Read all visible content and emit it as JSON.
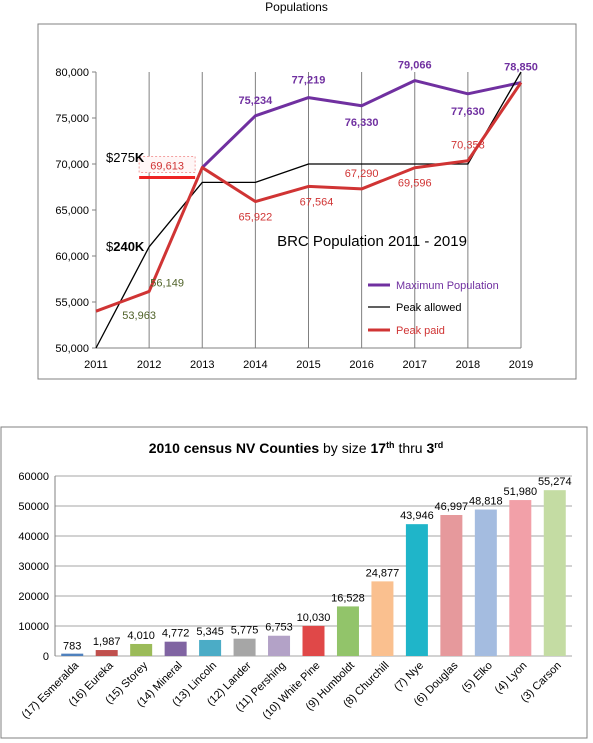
{
  "page_title": "Populations",
  "colors": {
    "max": "#7030a0",
    "peak_allowed": "#000000",
    "peak_paid": "#d03434",
    "green_label": "#4f6228"
  },
  "chart_data": [
    {
      "type": "line",
      "x": [
        "2011",
        "2012",
        "2013",
        "2014",
        "2015",
        "2016",
        "2017",
        "2018",
        "2019"
      ],
      "ylim": [
        50000,
        80000
      ],
      "yticks": [
        "50,000",
        "55,000",
        "60,000",
        "65,000",
        "70,000",
        "75,000",
        "80,000"
      ],
      "ytick_values": [
        50000,
        55000,
        60000,
        65000,
        70000,
        75000,
        80000
      ],
      "inner_title": "BRC Population 2011 - 2019",
      "series": [
        {
          "name": "Maximum Population",
          "color": "#7030a0",
          "x": [
            "2013",
            "2014",
            "2015",
            "2016",
            "2017",
            "2018",
            "2019"
          ],
          "values": [
            69613,
            75234,
            77219,
            76330,
            79066,
            77630,
            78850
          ],
          "labels": [
            "",
            "75,234",
            "77,219",
            "76,330",
            "79,066",
            "77,630",
            "78,850"
          ]
        },
        {
          "name": "Peak allowed",
          "color": "#000000",
          "x": [
            "2011",
            "2012",
            "2013",
            "2014",
            "2015",
            "2016",
            "2017",
            "2018",
            "2019"
          ],
          "values": [
            50000,
            61000,
            68000,
            68000,
            70000,
            70000,
            70000,
            70000,
            80000
          ]
        },
        {
          "name": "Peak paid",
          "color": "#d03434",
          "x": [
            "2011",
            "2012",
            "2013",
            "2014",
            "2015",
            "2016",
            "2017",
            "2018",
            "2019"
          ],
          "values": [
            54000,
            56149,
            69613,
            65922,
            67564,
            67290,
            69596,
            70358,
            78850
          ],
          "labels": [
            "",
            "56,149",
            "69,613",
            "65,922",
            "67,564",
            "67,290",
            "69,596",
            "70,358",
            ""
          ]
        }
      ],
      "annotations": {
        "label_275_prefix": "$275",
        "label_275_suffix": "K",
        "label_240_prefix": "$",
        "label_240_bold": "240K",
        "green_label": "53,963"
      },
      "legend_position": "bottom-right",
      "grid": "vertical"
    },
    {
      "type": "bar",
      "title_parts": {
        "a": "2010 census NV Counties",
        "b": " by size ",
        "c": "17",
        "d": "th",
        "e": " thru ",
        "f": "3",
        "g": "rd"
      },
      "ylim": [
        0,
        60000
      ],
      "yticks": [
        "0",
        "10000",
        "20000",
        "30000",
        "40000",
        "50000",
        "60000"
      ],
      "ytick_values": [
        0,
        10000,
        20000,
        30000,
        40000,
        50000,
        60000
      ],
      "categories": [
        "(17) Esmeralda",
        "(16) Eureka",
        "(15) Storey",
        "(14) Mineral",
        "(13) Lincoln",
        "(12) Lander",
        "(11) Pershing",
        "(10) White Pine",
        "(9) Humboldt",
        "(8) Churchill",
        "(7) Nye",
        "(6) Douglas",
        "(5) Elko",
        "(4) Lyon",
        "(3) Carson"
      ],
      "values": [
        783,
        1987,
        4010,
        4772,
        5345,
        5775,
        6753,
        10030,
        16528,
        24877,
        43946,
        46997,
        48818,
        51980,
        55274
      ],
      "value_labels": [
        "783",
        "1,987",
        "4,010",
        "4,772",
        "5,345",
        "5,775",
        "6,753",
        "10,030",
        "16,528",
        "24,877",
        "43,946",
        "46,997",
        "48,818",
        "51,980",
        "55,274"
      ],
      "bar_colors": [
        "#4f81bd",
        "#c0504d",
        "#9bbb59",
        "#8064a2",
        "#4bacc6",
        "#a6a6a6",
        "#b3a2c7",
        "#e04848",
        "#92c46a",
        "#fac08f",
        "#1fb5c9",
        "#e6999c",
        "#a4bce0",
        "#f2a0a8",
        "#c4dca3"
      ],
      "grid": "horizontal"
    }
  ]
}
